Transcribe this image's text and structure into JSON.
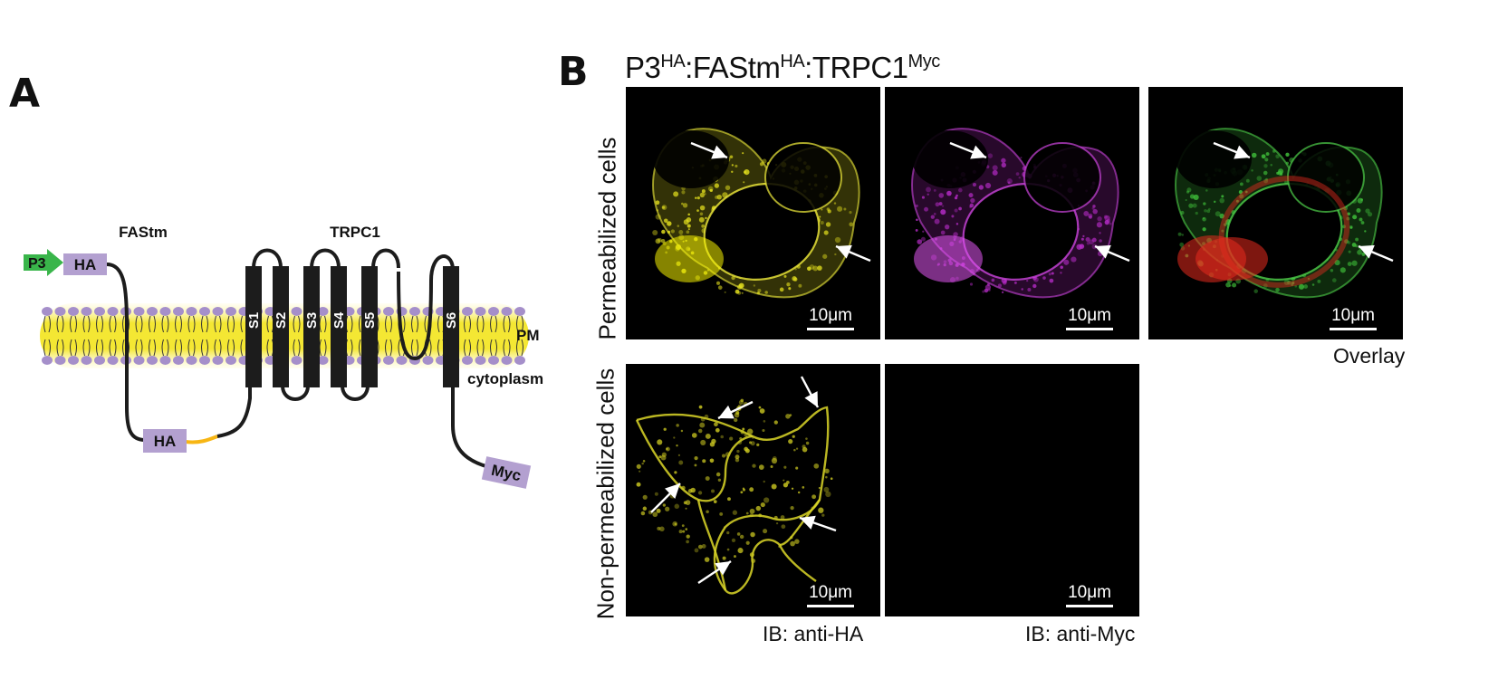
{
  "panel_a": {
    "letter": "A",
    "labels": {
      "fastm": "FAStm",
      "trpc1": "TRPC1",
      "p3": "P3",
      "ha_top": "HA",
      "ha_bottom": "HA",
      "myc": "Myc",
      "pm": "PM",
      "cytoplasm": "cytoplasm"
    },
    "segments": [
      "S1",
      "S2",
      "S3",
      "S4",
      "S5",
      "S6"
    ],
    "colors": {
      "tag_fill": "#b3a0d0",
      "promoter": "#39b54a",
      "linker": "#f7b614",
      "membrane_glow": "#f5ea3a",
      "lipid_head": "#a58fca",
      "helix": "#1c1c1c"
    }
  },
  "panel_b": {
    "letter": "B",
    "construct": {
      "p3": "P3",
      "p3_sup": "HA",
      "sep1": ":",
      "fastm": "FAStm",
      "fastm_sup": "HA",
      "sep2": ":",
      "trpc1": "TRPC1",
      "trpc1_sup": "Myc"
    },
    "row_labels": {
      "permeabilized": "Permeabilized cells",
      "non_permeabilized": "Non-permeabilized cells"
    },
    "column_labels": {
      "anti_ha": "IB: anti-HA",
      "anti_myc": "IB: anti-Myc",
      "overlay": "Overlay"
    },
    "scale_bar": "10μm",
    "colors": {
      "ha_channel": "#e6e21e",
      "myc_channel": "#c433d6",
      "overlay_green": "#3fbf3a",
      "overlay_red": "#e62a1e"
    }
  }
}
